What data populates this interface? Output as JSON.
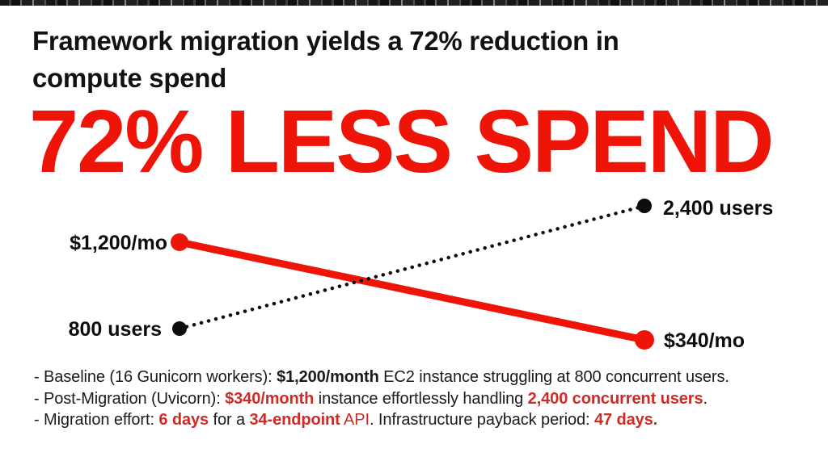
{
  "headline": {
    "lines": [
      "Framework migration yields a 72% reduction in",
      "compute spend"
    ]
  },
  "big_stat": "72% LESS SPEND",
  "colors": {
    "accent_red": "#ee1408",
    "bullet_red": "#d02a24",
    "ink": "#141414"
  },
  "chart_data": {
    "type": "line",
    "title": "72% LESS SPEND",
    "subtitle": "Framework migration yields a 72% reduction in compute spend",
    "grid": false,
    "legend": "none",
    "series": [
      {
        "name": "monthly-spend",
        "style": "solid",
        "color": "#ee1408",
        "values": [
          1200,
          340
        ],
        "unit": "$/mo",
        "point_labels": [
          "$1,200/mo",
          "$340/mo"
        ]
      },
      {
        "name": "concurrent-users",
        "style": "dotted",
        "color": "#0d0d0d",
        "values": [
          800,
          2400
        ],
        "unit": "users",
        "point_labels": [
          "800 users",
          "2,400 users"
        ]
      }
    ]
  },
  "bullets": [
    [
      {
        "text": "- Baseline (16 Gunicorn workers): "
      },
      {
        "text": "$1,200/month",
        "bold": true
      },
      {
        "text": " EC2 instance struggling at 800 concurrent users."
      }
    ],
    [
      {
        "text": "- Post-Migration (Uvicorn): "
      },
      {
        "text": "$340/month",
        "bold": true,
        "red": true
      },
      {
        "text": " instance effortlessly handling "
      },
      {
        "text": "2,400 concurrent users",
        "bold": true,
        "red": true
      },
      {
        "text": "."
      }
    ],
    [
      {
        "text": "- Migration effort: "
      },
      {
        "text": "6 days",
        "bold": true,
        "red": true
      },
      {
        "text": " for a "
      },
      {
        "text": "34-endpoint",
        "bold": true,
        "red": true
      },
      {
        "text": " API",
        "red": true
      },
      {
        "text": ". Infrastructure payback period: "
      },
      {
        "text": "47 days.",
        "bold": true,
        "red": true
      }
    ]
  ]
}
